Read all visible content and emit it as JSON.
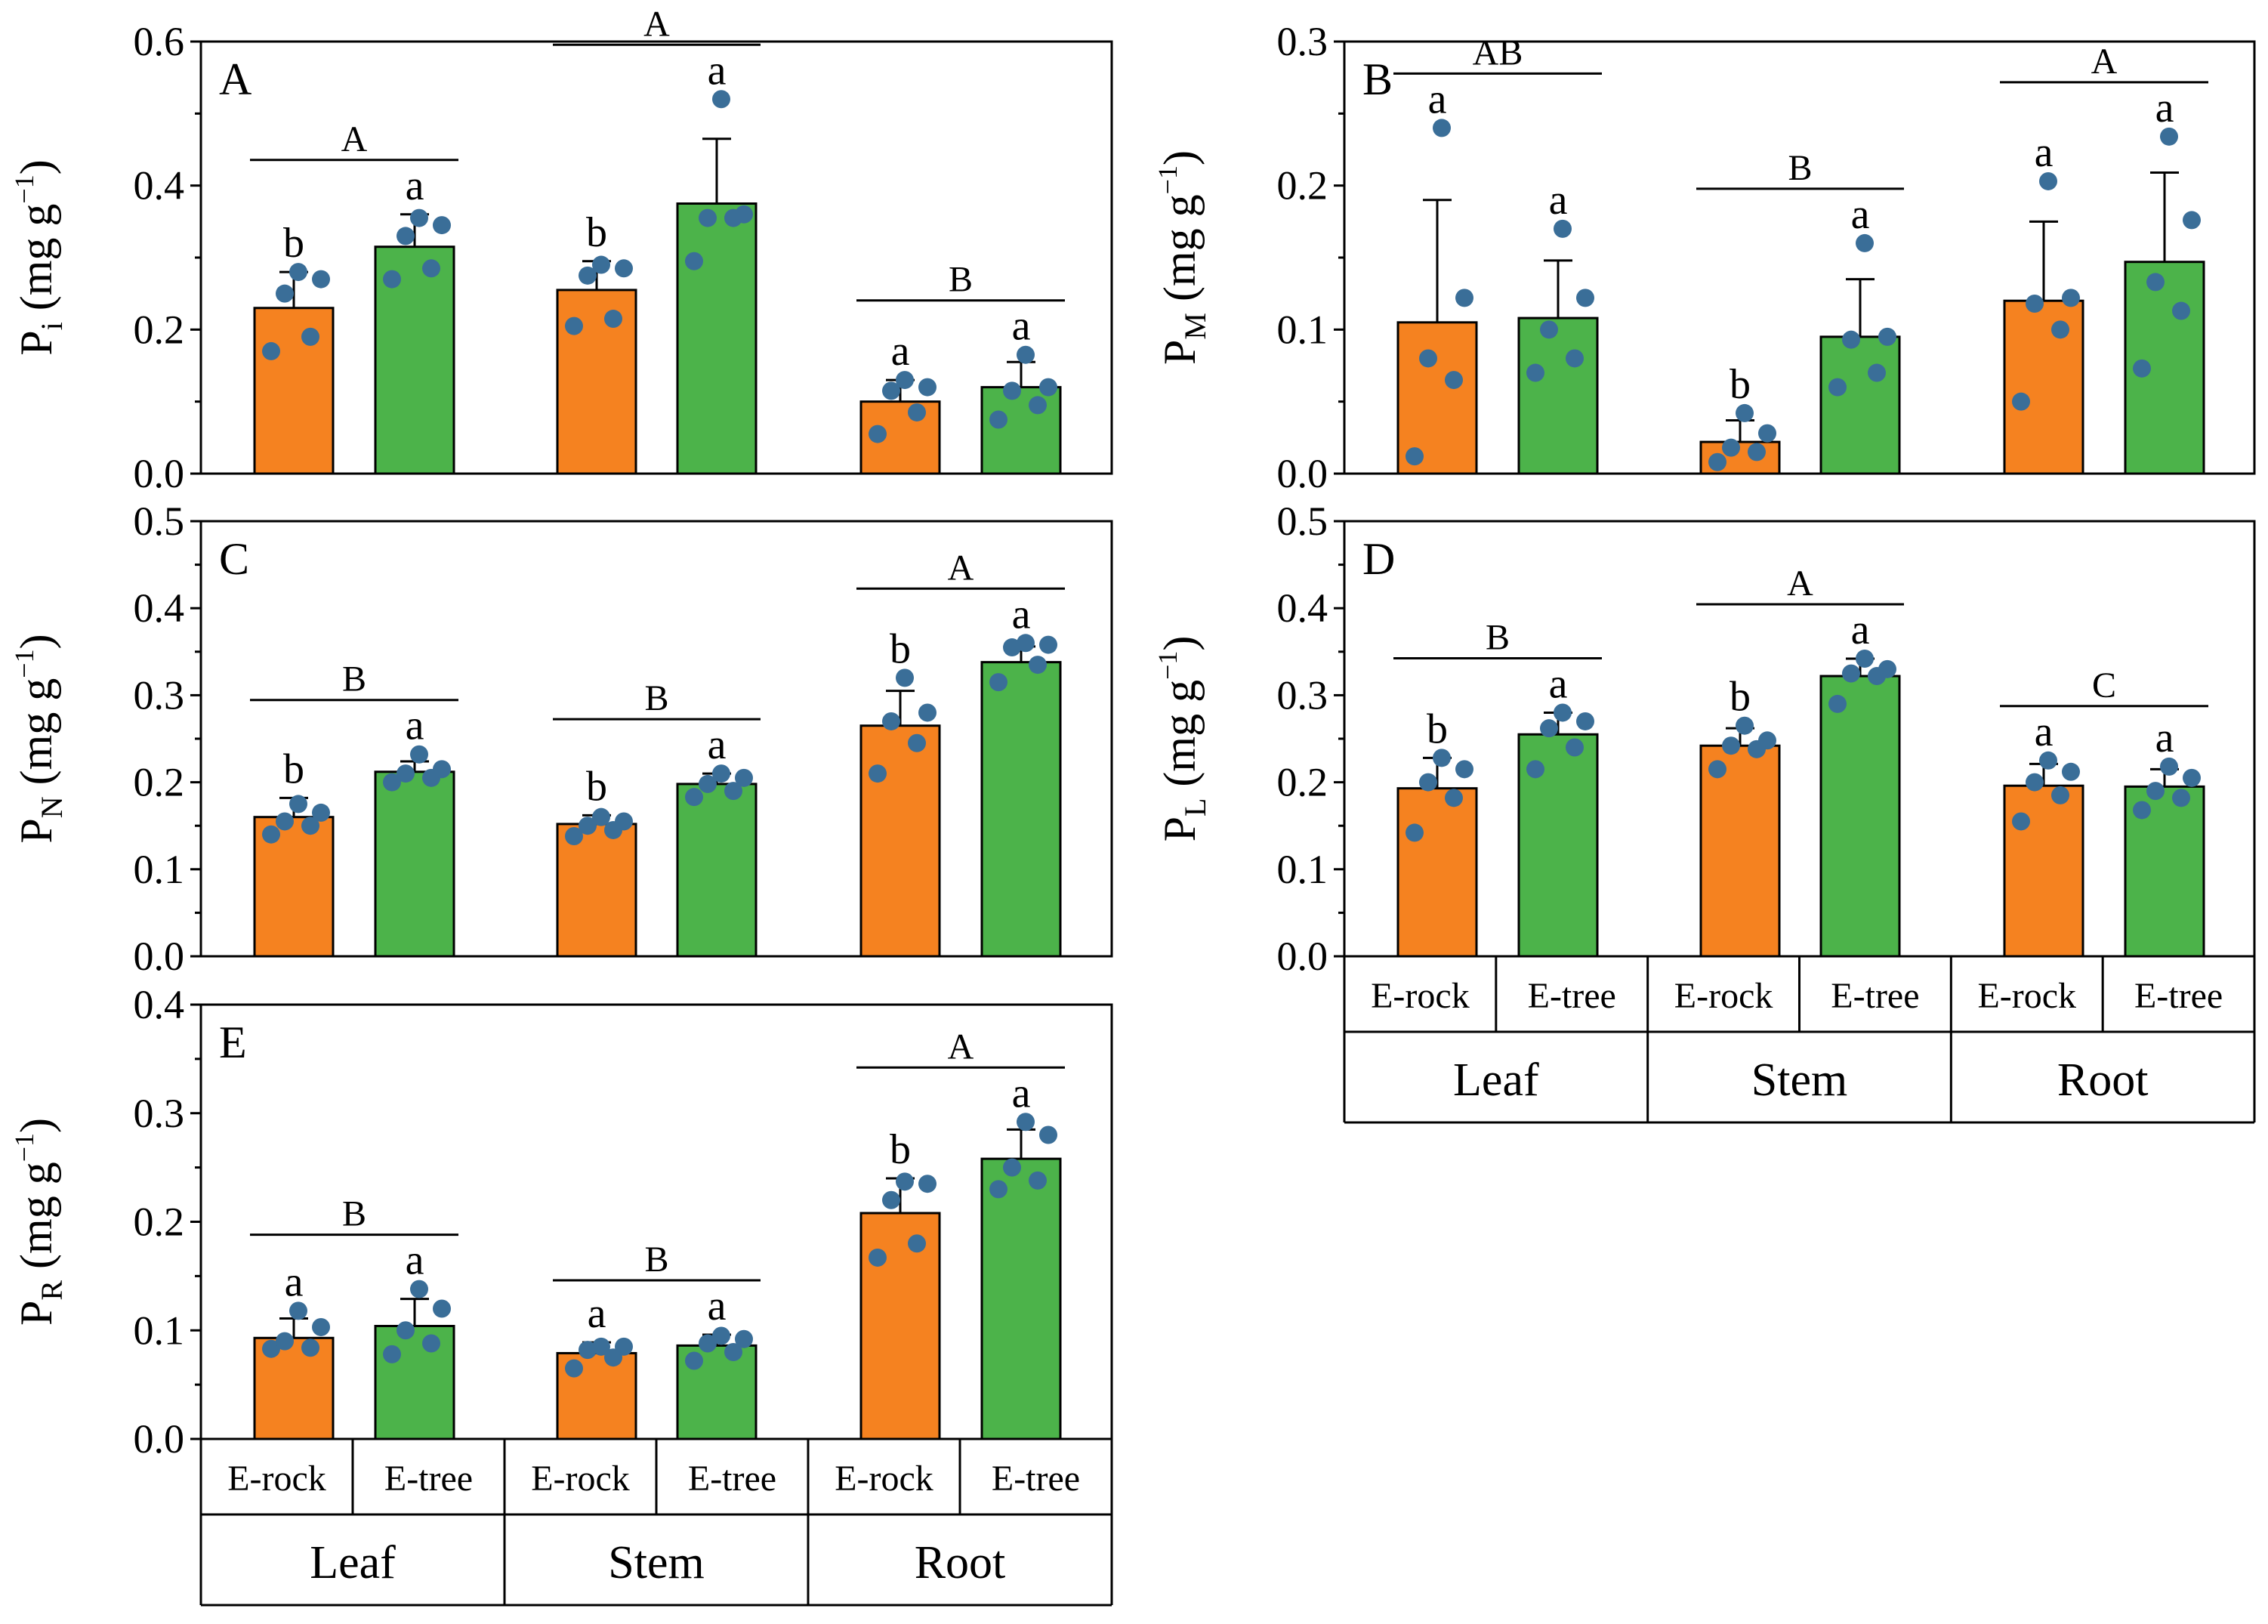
{
  "chart_data": {
    "type": "bar",
    "categories": [
      "E-rock",
      "E-tree"
    ],
    "groups": [
      "Leaf",
      "Stem",
      "Root"
    ],
    "colors": {
      "E-rock": "#f58220",
      "E-tree": "#4cb34a",
      "dots": "#3a6e98"
    },
    "panels": [
      {
        "id": "A",
        "label": "A",
        "ylabel": {
          "base": "P",
          "sub": "i",
          "unit": " (mg g",
          "sup": "−1",
          "close": ")"
        },
        "ylim": [
          0,
          0.6
        ],
        "yticks": [
          "0.0",
          "0.2",
          "0.4",
          "0.6"
        ],
        "groups": [
          {
            "name": "Leaf",
            "upper_letter": "A",
            "bars": [
              {
                "series": "E-rock",
                "mean": 0.23,
                "sd": 0.05,
                "letter": "b",
                "points": [
                  0.17,
                  0.19,
                  0.25,
                  0.27,
                  0.28
                ]
              },
              {
                "series": "E-tree",
                "mean": 0.315,
                "sd": 0.045,
                "letter": "a",
                "points": [
                  0.27,
                  0.285,
                  0.33,
                  0.345,
                  0.355
                ]
              }
            ]
          },
          {
            "name": "Stem",
            "upper_letter": "A",
            "bars": [
              {
                "series": "E-rock",
                "mean": 0.255,
                "sd": 0.04,
                "letter": "b",
                "points": [
                  0.205,
                  0.215,
                  0.275,
                  0.285,
                  0.29
                ]
              },
              {
                "series": "E-tree",
                "mean": 0.375,
                "sd": 0.09,
                "letter": "a",
                "points": [
                  0.295,
                  0.355,
                  0.355,
                  0.36,
                  0.52
                ]
              }
            ]
          },
          {
            "name": "Root",
            "upper_letter": "B",
            "bars": [
              {
                "series": "E-rock",
                "mean": 0.1,
                "sd": 0.03,
                "letter": "a",
                "points": [
                  0.055,
                  0.085,
                  0.115,
                  0.12,
                  0.13
                ]
              },
              {
                "series": "E-tree",
                "mean": 0.12,
                "sd": 0.035,
                "letter": "a",
                "points": [
                  0.075,
                  0.095,
                  0.115,
                  0.12,
                  0.165
                ]
              }
            ]
          }
        ]
      },
      {
        "id": "B",
        "label": "B",
        "ylabel": {
          "base": "P",
          "sub": "M",
          "unit": " (mg g",
          "sup": "−1",
          "close": ")"
        },
        "ylim": [
          0,
          0.3
        ],
        "yticks": [
          "0.0",
          "0.1",
          "0.2",
          "0.3"
        ],
        "groups": [
          {
            "name": "Leaf",
            "upper_letter": "AB",
            "bars": [
              {
                "series": "E-rock",
                "mean": 0.105,
                "sd": 0.085,
                "letter": "a",
                "points": [
                  0.012,
                  0.065,
                  0.08,
                  0.122,
                  0.24
                ]
              },
              {
                "series": "E-tree",
                "mean": 0.108,
                "sd": 0.04,
                "letter": "a",
                "points": [
                  0.07,
                  0.08,
                  0.1,
                  0.122,
                  0.17
                ]
              }
            ]
          },
          {
            "name": "Stem",
            "upper_letter": "B",
            "bars": [
              {
                "series": "E-rock",
                "mean": 0.022,
                "sd": 0.015,
                "letter": "b",
                "points": [
                  0.008,
                  0.015,
                  0.018,
                  0.028,
                  0.042
                ]
              },
              {
                "series": "E-tree",
                "mean": 0.095,
                "sd": 0.04,
                "letter": "a",
                "points": [
                  0.06,
                  0.07,
                  0.093,
                  0.095,
                  0.16
                ]
              }
            ]
          },
          {
            "name": "Root",
            "upper_letter": "A",
            "bars": [
              {
                "series": "E-rock",
                "mean": 0.12,
                "sd": 0.055,
                "letter": "a",
                "points": [
                  0.05,
                  0.1,
                  0.118,
                  0.122,
                  0.203
                ]
              },
              {
                "series": "E-tree",
                "mean": 0.147,
                "sd": 0.062,
                "letter": "a",
                "points": [
                  0.073,
                  0.113,
                  0.133,
                  0.176,
                  0.234
                ]
              }
            ]
          }
        ]
      },
      {
        "id": "C",
        "label": "C",
        "ylabel": {
          "base": "P",
          "sub": "N",
          "unit": " (mg g",
          "sup": "−1",
          "close": ")"
        },
        "ylim": [
          0,
          0.5
        ],
        "yticks": [
          "0.0",
          "0.1",
          "0.2",
          "0.3",
          "0.4",
          "0.5"
        ],
        "groups": [
          {
            "name": "Leaf",
            "upper_letter": "B",
            "bars": [
              {
                "series": "E-rock",
                "mean": 0.16,
                "sd": 0.022,
                "letter": "b",
                "points": [
                  0.14,
                  0.15,
                  0.155,
                  0.165,
                  0.175
                ]
              },
              {
                "series": "E-tree",
                "mean": 0.212,
                "sd": 0.012,
                "letter": "a",
                "points": [
                  0.2,
                  0.205,
                  0.21,
                  0.215,
                  0.232
                ]
              }
            ]
          },
          {
            "name": "Stem",
            "upper_letter": "B",
            "bars": [
              {
                "series": "E-rock",
                "mean": 0.152,
                "sd": 0.01,
                "letter": "b",
                "points": [
                  0.138,
                  0.145,
                  0.15,
                  0.155,
                  0.16
                ]
              },
              {
                "series": "E-tree",
                "mean": 0.198,
                "sd": 0.012,
                "letter": "a",
                "points": [
                  0.183,
                  0.19,
                  0.198,
                  0.205,
                  0.21
                ]
              }
            ]
          },
          {
            "name": "Root",
            "upper_letter": "A",
            "bars": [
              {
                "series": "E-rock",
                "mean": 0.265,
                "sd": 0.04,
                "letter": "b",
                "points": [
                  0.21,
                  0.245,
                  0.27,
                  0.28,
                  0.32
                ]
              },
              {
                "series": "E-tree",
                "mean": 0.338,
                "sd": 0.018,
                "letter": "a",
                "points": [
                  0.315,
                  0.335,
                  0.355,
                  0.358,
                  0.36
                ]
              }
            ]
          }
        ]
      },
      {
        "id": "D",
        "label": "D",
        "ylabel": {
          "base": "P",
          "sub": "L",
          "unit": " (mg g",
          "sup": "−1",
          "close": ")"
        },
        "ylim": [
          0,
          0.5
        ],
        "yticks": [
          "0.0",
          "0.1",
          "0.2",
          "0.3",
          "0.4",
          "0.5"
        ],
        "groups": [
          {
            "name": "Leaf",
            "upper_letter": "B",
            "bars": [
              {
                "series": "E-rock",
                "mean": 0.193,
                "sd": 0.035,
                "letter": "b",
                "points": [
                  0.142,
                  0.182,
                  0.2,
                  0.215,
                  0.228
                ]
              },
              {
                "series": "E-tree",
                "mean": 0.255,
                "sd": 0.025,
                "letter": "a",
                "points": [
                  0.215,
                  0.24,
                  0.262,
                  0.27,
                  0.28
                ]
              }
            ]
          },
          {
            "name": "Stem",
            "upper_letter": "A",
            "bars": [
              {
                "series": "E-rock",
                "mean": 0.242,
                "sd": 0.02,
                "letter": "b",
                "points": [
                  0.215,
                  0.238,
                  0.242,
                  0.248,
                  0.265
                ]
              },
              {
                "series": "E-tree",
                "mean": 0.322,
                "sd": 0.02,
                "letter": "a",
                "points": [
                  0.29,
                  0.322,
                  0.325,
                  0.33,
                  0.342
                ]
              }
            ]
          },
          {
            "name": "Root",
            "upper_letter": "C",
            "bars": [
              {
                "series": "E-rock",
                "mean": 0.196,
                "sd": 0.025,
                "letter": "a",
                "points": [
                  0.155,
                  0.185,
                  0.2,
                  0.212,
                  0.225
                ]
              },
              {
                "series": "E-tree",
                "mean": 0.195,
                "sd": 0.02,
                "letter": "a",
                "points": [
                  0.168,
                  0.182,
                  0.19,
                  0.205,
                  0.218
                ]
              }
            ]
          }
        ]
      },
      {
        "id": "E",
        "label": "E",
        "ylabel": {
          "base": "P",
          "sub": "R",
          "unit": " (mg g",
          "sup": "−1",
          "close": ")"
        },
        "ylim": [
          0,
          0.4
        ],
        "yticks": [
          "0.0",
          "0.1",
          "0.2",
          "0.3",
          "0.4"
        ],
        "groups": [
          {
            "name": "Leaf",
            "upper_letter": "B",
            "bars": [
              {
                "series": "E-rock",
                "mean": 0.093,
                "sd": 0.018,
                "letter": "a",
                "points": [
                  0.083,
                  0.084,
                  0.09,
                  0.103,
                  0.118
                ]
              },
              {
                "series": "E-tree",
                "mean": 0.104,
                "sd": 0.025,
                "letter": "a",
                "points": [
                  0.078,
                  0.088,
                  0.1,
                  0.12,
                  0.138
                ]
              }
            ]
          },
          {
            "name": "Stem",
            "upper_letter": "B",
            "bars": [
              {
                "series": "E-rock",
                "mean": 0.079,
                "sd": 0.01,
                "letter": "a",
                "points": [
                  0.065,
                  0.075,
                  0.082,
                  0.085,
                  0.085
                ]
              },
              {
                "series": "E-tree",
                "mean": 0.086,
                "sd": 0.01,
                "letter": "a",
                "points": [
                  0.072,
                  0.08,
                  0.088,
                  0.092,
                  0.095
                ]
              }
            ]
          },
          {
            "name": "Root",
            "upper_letter": "A",
            "bars": [
              {
                "series": "E-rock",
                "mean": 0.208,
                "sd": 0.032,
                "letter": "b",
                "points": [
                  0.167,
                  0.18,
                  0.22,
                  0.235,
                  0.237
                ]
              },
              {
                "series": "E-tree",
                "mean": 0.258,
                "sd": 0.027,
                "letter": "a",
                "points": [
                  0.23,
                  0.238,
                  0.25,
                  0.28,
                  0.292
                ]
              }
            ]
          }
        ]
      }
    ]
  }
}
